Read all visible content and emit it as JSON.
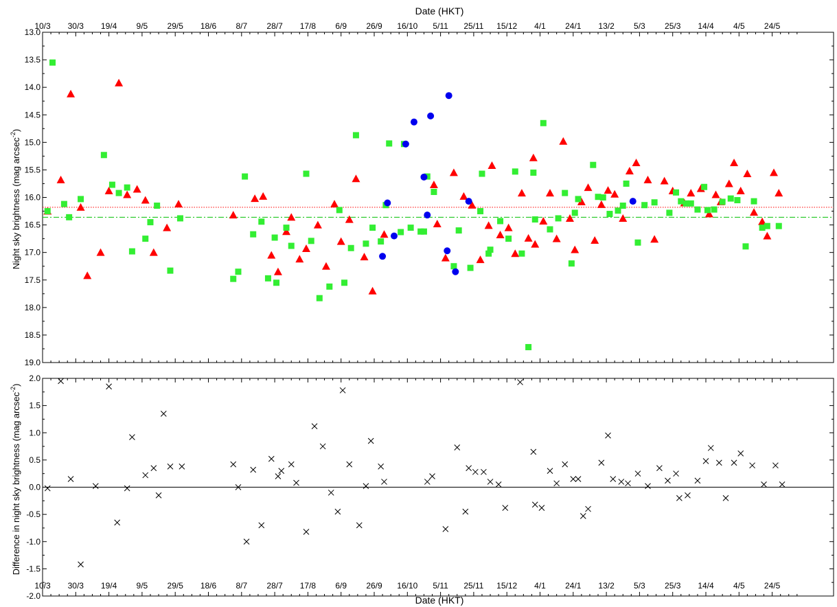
{
  "chart_data": [
    {
      "type": "scatter",
      "title": "",
      "xlabel_top": "Date (HKT)",
      "ylabel": "Night sky brightness (mag arcsec",
      "ylabel_sup": "-2",
      "ylabel_close": ")",
      "ylim": [
        13.0,
        19.0
      ],
      "y_inverted": true,
      "grid": false,
      "x_tick_labels": [
        "10/3",
        "30/3",
        "19/4",
        "9/5",
        "29/5",
        "18/6",
        "8/7",
        "28/7",
        "17/8",
        "6/9",
        "26/9",
        "16/10",
        "5/11",
        "25/11",
        "15/12",
        "4/1",
        "24/1",
        "13/2",
        "5/3",
        "25/3",
        "14/4",
        "4/5",
        "24/5"
      ],
      "y_tick_labels": [
        "13.0",
        "13.5",
        "14.0",
        "14.5",
        "15.0",
        "15.5",
        "16.0",
        "16.5",
        "17.0",
        "17.5",
        "18.0",
        "18.5",
        "19.0"
      ],
      "reference_lines": [
        {
          "name": "red dotted mean",
          "y": 16.18,
          "style": "dotted",
          "color": "#ff0000"
        },
        {
          "name": "green dash-dot mean",
          "y": 16.36,
          "style": "dashdot",
          "color": "#00c000"
        }
      ],
      "series": [
        {
          "marker": "triangle",
          "color": "#ff0000",
          "x": [
            "2010-03-13",
            "2010-03-21",
            "2010-03-27",
            "2010-04-02",
            "2010-04-06",
            "2010-04-14",
            "2010-04-19",
            "2010-04-25",
            "2010-04-30",
            "2010-05-06",
            "2010-05-11",
            "2010-05-16",
            "2010-05-24",
            "2010-05-31",
            "2010-07-03",
            "2010-07-16",
            "2010-07-21",
            "2010-07-26",
            "2010-07-30",
            "2010-08-04",
            "2010-08-07",
            "2010-08-12",
            "2010-08-16",
            "2010-08-23",
            "2010-08-28",
            "2010-09-02",
            "2010-09-06",
            "2010-09-11",
            "2010-09-15",
            "2010-09-20",
            "2010-09-25",
            "2010-10-02",
            "2010-11-01",
            "2010-11-03",
            "2010-11-08",
            "2010-11-13",
            "2010-11-19",
            "2010-11-24",
            "2010-11-29",
            "2010-12-04",
            "2010-12-06",
            "2010-12-11",
            "2010-12-16",
            "2010-12-20",
            "2010-12-24",
            "2010-12-28",
            "2010-12-31",
            "2011-01-01",
            "2011-01-06",
            "2011-01-10",
            "2011-01-14",
            "2011-01-18",
            "2011-01-22",
            "2011-01-25",
            "2011-01-29",
            "2011-02-02",
            "2011-02-06",
            "2011-02-10",
            "2011-02-14",
            "2011-02-18",
            "2011-02-23",
            "2011-02-27",
            "2011-03-03",
            "2011-03-10",
            "2011-03-14",
            "2011-03-20",
            "2011-03-25",
            "2011-04-01",
            "2011-04-05",
            "2011-04-11",
            "2011-04-16",
            "2011-04-20",
            "2011-04-23",
            "2011-04-28",
            "2011-05-01",
            "2011-05-05",
            "2011-05-09",
            "2011-05-13",
            "2011-05-18",
            "2011-05-21",
            "2011-05-25",
            "2011-05-28"
          ],
          "y": [
            16.25,
            15.68,
            14.12,
            16.18,
            17.42,
            17.0,
            15.88,
            13.92,
            15.95,
            15.85,
            16.05,
            17.0,
            16.55,
            16.12,
            16.32,
            16.02,
            15.98,
            17.05,
            17.35,
            16.62,
            16.36,
            17.12,
            16.93,
            16.5,
            17.25,
            16.12,
            16.8,
            16.4,
            15.66,
            17.08,
            17.7,
            16.67,
            15.77,
            16.48,
            17.1,
            15.55,
            15.98,
            16.14,
            17.13,
            16.51,
            15.42,
            16.68,
            16.55,
            17.02,
            15.92,
            16.74,
            15.28,
            16.85,
            16.43,
            15.92,
            16.75,
            14.98,
            16.38,
            16.95,
            16.08,
            15.82,
            16.78,
            16.13,
            15.87,
            15.94,
            16.38,
            15.52,
            15.37,
            15.68,
            16.76,
            15.7,
            15.88,
            16.1,
            15.92,
            15.84,
            16.3,
            15.95,
            16.08,
            15.75,
            15.37,
            15.88,
            15.57,
            16.27,
            16.44,
            16.7,
            15.55,
            15.92
          ]
        },
        {
          "marker": "square",
          "color": "#33ee33",
          "x": [
            "2010-03-13",
            "2010-03-16",
            "2010-03-23",
            "2010-03-26",
            "2010-04-02",
            "2010-04-16",
            "2010-04-21",
            "2010-04-25",
            "2010-04-30",
            "2010-05-03",
            "2010-05-11",
            "2010-05-14",
            "2010-05-18",
            "2010-05-26",
            "2010-06-01",
            "2010-07-03",
            "2010-07-06",
            "2010-07-10",
            "2010-07-15",
            "2010-07-20",
            "2010-07-24",
            "2010-07-28",
            "2010-07-29",
            "2010-08-04",
            "2010-08-07",
            "2010-08-16",
            "2010-08-19",
            "2010-08-24",
            "2010-08-30",
            "2010-09-05",
            "2010-09-08",
            "2010-09-12",
            "2010-09-15",
            "2010-09-21",
            "2010-09-25",
            "2010-09-30",
            "2010-10-03",
            "2010-10-05",
            "2010-10-12",
            "2010-10-14",
            "2010-10-18",
            "2010-10-24",
            "2010-10-26",
            "2010-10-28",
            "2010-11-01",
            "2010-11-13",
            "2010-11-16",
            "2010-11-23",
            "2010-11-29",
            "2010-11-30",
            "2010-12-04",
            "2010-12-05",
            "2010-12-11",
            "2010-12-16",
            "2010-12-20",
            "2010-12-24",
            "2010-12-28",
            "2010-12-31",
            "2011-01-01",
            "2011-01-06",
            "2011-01-10",
            "2011-01-15",
            "2011-01-19",
            "2011-01-23",
            "2011-01-25",
            "2011-01-27",
            "2011-02-05",
            "2011-02-08",
            "2011-02-11",
            "2011-02-15",
            "2011-02-20",
            "2011-02-23",
            "2011-02-25",
            "2011-03-04",
            "2011-03-08",
            "2011-03-14",
            "2011-03-23",
            "2011-03-27",
            "2011-03-30",
            "2011-04-02",
            "2011-04-05",
            "2011-04-09",
            "2011-04-13",
            "2011-04-15",
            "2011-04-19",
            "2011-04-24",
            "2011-04-29",
            "2011-05-03",
            "2011-05-08",
            "2011-05-13",
            "2011-05-18",
            "2011-05-21",
            "2011-05-28"
          ],
          "y": [
            16.25,
            13.55,
            16.12,
            16.36,
            16.03,
            15.23,
            15.77,
            15.92,
            15.82,
            16.98,
            16.75,
            16.45,
            16.15,
            17.33,
            16.38,
            17.48,
            17.35,
            15.62,
            16.67,
            16.44,
            17.47,
            16.73,
            17.55,
            16.55,
            16.88,
            15.57,
            16.79,
            17.83,
            17.62,
            16.23,
            17.55,
            16.92,
            14.87,
            16.84,
            16.55,
            16.8,
            16.14,
            15.02,
            16.63,
            15.03,
            16.55,
            16.62,
            16.62,
            15.62,
            15.9,
            17.25,
            16.6,
            17.28,
            16.25,
            15.57,
            17.02,
            16.95,
            16.43,
            16.75,
            15.53,
            17.02,
            18.72,
            15.55,
            16.4,
            14.65,
            16.58,
            16.38,
            15.92,
            17.2,
            16.28,
            16.03,
            15.41,
            15.99,
            16.0,
            16.3,
            16.24,
            16.15,
            15.75,
            16.82,
            16.14,
            16.09,
            16.28,
            15.91,
            16.07,
            16.11,
            16.11,
            16.22,
            15.81,
            16.23,
            16.22,
            16.08,
            16.02,
            16.05,
            16.89,
            16.07,
            16.55,
            16.52,
            16.52
          ]
        },
        {
          "marker": "circle",
          "color": "#0000ee",
          "x": [
            "2010-10-01",
            "2010-10-04",
            "2010-10-08",
            "2010-10-15",
            "2010-10-20",
            "2010-10-26",
            "2010-10-28",
            "2010-10-30",
            "2010-11-09",
            "2010-11-10",
            "2010-11-14",
            "2010-11-22",
            "2011-03-01"
          ],
          "y": [
            17.07,
            16.1,
            16.7,
            15.03,
            14.63,
            15.63,
            16.32,
            14.52,
            16.97,
            14.15,
            17.35,
            16.07,
            16.07
          ]
        }
      ]
    },
    {
      "type": "scatter",
      "title": "",
      "xlabel": "Date (HKT)",
      "ylabel": "Difference in night sky brightness (mag arcsec",
      "ylabel_sup": "-2",
      "ylabel_close": ")",
      "ylim": [
        -2.0,
        2.0
      ],
      "grid": false,
      "x_tick_labels": [
        "10/3",
        "30/3",
        "19/4",
        "9/5",
        "29/5",
        "18/6",
        "8/7",
        "28/7",
        "17/8",
        "6/9",
        "26/9",
        "16/10",
        "5/11",
        "25/11",
        "15/12",
        "4/1",
        "24/1",
        "13/2",
        "5/3",
        "25/3",
        "14/4",
        "4/5",
        "24/5"
      ],
      "y_tick_labels": [
        "2.0",
        "1.5",
        "1.0",
        "0.5",
        "0.0",
        "-0.5",
        "-1.0",
        "-1.5",
        "-2.0"
      ],
      "reference_lines": [
        {
          "name": "zero line",
          "y": 0.0,
          "style": "solid",
          "color": "#000000"
        }
      ],
      "series": [
        {
          "marker": "x",
          "color": "#000000",
          "x": [
            "2010-03-13",
            "2010-03-21",
            "2010-03-27",
            "2010-04-02",
            "2010-04-11",
            "2010-04-19",
            "2010-04-24",
            "2010-04-30",
            "2010-05-03",
            "2010-05-11",
            "2010-05-16",
            "2010-05-19",
            "2010-05-22",
            "2010-05-26",
            "2010-06-02",
            "2010-07-03",
            "2010-07-06",
            "2010-07-11",
            "2010-07-15",
            "2010-07-20",
            "2010-07-26",
            "2010-07-30",
            "2010-08-01",
            "2010-08-07",
            "2010-08-10",
            "2010-08-16",
            "2010-08-21",
            "2010-08-26",
            "2010-08-31",
            "2010-09-04",
            "2010-09-07",
            "2010-09-11",
            "2010-09-17",
            "2010-09-21",
            "2010-09-24",
            "2010-09-30",
            "2010-10-02",
            "2010-10-28",
            "2010-10-31",
            "2010-11-08",
            "2010-11-15",
            "2010-11-20",
            "2010-11-22",
            "2010-11-26",
            "2010-12-01",
            "2010-12-05",
            "2010-12-10",
            "2010-12-14",
            "2010-12-23",
            "2010-12-31",
            "2011-01-01",
            "2011-01-05",
            "2011-01-10",
            "2011-01-14",
            "2011-01-19",
            "2011-01-24",
            "2011-01-27",
            "2011-01-30",
            "2011-02-02",
            "2011-02-10",
            "2011-02-14",
            "2011-02-17",
            "2011-02-22",
            "2011-02-26",
            "2011-03-04",
            "2011-03-10",
            "2011-03-17",
            "2011-03-22",
            "2011-03-27",
            "2011-03-29",
            "2011-04-03",
            "2011-04-09",
            "2011-04-14",
            "2011-04-17",
            "2011-04-22",
            "2011-04-26",
            "2011-05-01",
            "2011-05-05",
            "2011-05-12",
            "2011-05-19",
            "2011-05-26",
            "2011-05-30"
          ],
          "y": [
            -0.02,
            1.95,
            0.15,
            -1.42,
            0.02,
            1.85,
            -0.65,
            -0.02,
            0.92,
            0.22,
            0.35,
            -0.15,
            1.35,
            0.38,
            0.38,
            0.42,
            0.0,
            -1.0,
            0.32,
            -0.7,
            0.52,
            0.2,
            0.3,
            0.42,
            0.08,
            -0.82,
            1.12,
            0.75,
            -0.1,
            -0.45,
            1.78,
            0.42,
            -0.7,
            0.02,
            0.85,
            0.38,
            0.1,
            0.1,
            0.2,
            -0.77,
            0.73,
            -0.45,
            0.35,
            0.28,
            0.28,
            0.1,
            0.05,
            -0.38,
            1.93,
            0.65,
            -0.32,
            -0.38,
            0.3,
            0.07,
            0.42,
            0.15,
            0.15,
            -0.53,
            -0.4,
            0.45,
            0.95,
            0.15,
            0.1,
            0.07,
            0.25,
            0.02,
            0.35,
            0.12,
            0.25,
            -0.2,
            -0.15,
            0.12,
            0.48,
            0.72,
            0.45,
            -0.2,
            0.45,
            0.62,
            0.4,
            0.05,
            0.4,
            0.05
          ]
        }
      ]
    }
  ]
}
